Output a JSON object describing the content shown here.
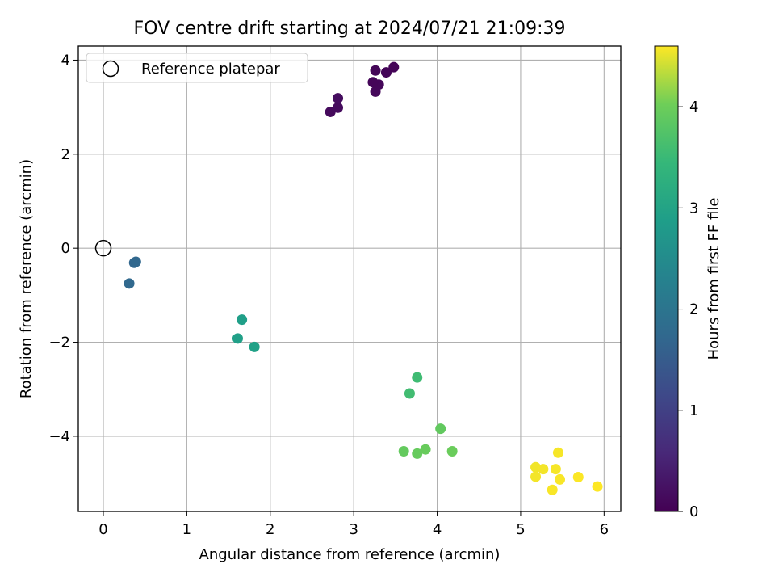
{
  "chart_data": {
    "type": "scatter",
    "title": "FOV centre drift starting at 2024/07/21 21:09:39",
    "xlabel": "Angular distance from reference (arcmin)",
    "ylabel": "Rotation from reference (arcmin)",
    "xlim": [
      -0.3,
      6.2
    ],
    "ylim": [
      -5.6,
      4.3
    ],
    "xticks": [
      "0",
      "1",
      "2",
      "3",
      "4",
      "5",
      "6"
    ],
    "yticks": [
      "−4",
      "−2",
      "0",
      "2",
      "4"
    ],
    "grid": true,
    "legend": {
      "placement": "top-left",
      "entries": [
        "Reference platepar"
      ]
    },
    "reference_point": {
      "x": 0,
      "y": 0
    },
    "colorbar": {
      "label": "Hours from first FF file",
      "range": [
        0,
        4.6
      ],
      "ticks": [
        "0",
        "1",
        "2",
        "3",
        "4"
      ],
      "colormap": "viridis"
    },
    "points": [
      {
        "x": 2.72,
        "y": 2.9,
        "t": 0.13
      },
      {
        "x": 2.81,
        "y": 2.99,
        "t": 0.15
      },
      {
        "x": 2.81,
        "y": 3.19,
        "t": 0.17
      },
      {
        "x": 3.26,
        "y": 3.33,
        "t": 0.1
      },
      {
        "x": 3.3,
        "y": 3.48,
        "t": 0.09
      },
      {
        "x": 3.23,
        "y": 3.53,
        "t": 0.08
      },
      {
        "x": 3.26,
        "y": 3.78,
        "t": 0.07
      },
      {
        "x": 3.39,
        "y": 3.74,
        "t": 0.06
      },
      {
        "x": 3.48,
        "y": 3.85,
        "t": 0.05
      },
      {
        "x": 0.37,
        "y": -0.31,
        "t": 1.7
      },
      {
        "x": 0.39,
        "y": -0.29,
        "t": 1.72
      },
      {
        "x": 0.31,
        "y": -0.75,
        "t": 1.75
      },
      {
        "x": 1.66,
        "y": -1.52,
        "t": 2.9
      },
      {
        "x": 1.61,
        "y": -1.92,
        "t": 2.92
      },
      {
        "x": 1.81,
        "y": -2.1,
        "t": 2.94
      },
      {
        "x": 3.76,
        "y": -2.75,
        "t": 3.55
      },
      {
        "x": 3.67,
        "y": -3.09,
        "t": 3.58
      },
      {
        "x": 4.04,
        "y": -3.84,
        "t": 3.9
      },
      {
        "x": 3.6,
        "y": -4.32,
        "t": 3.92
      },
      {
        "x": 3.76,
        "y": -4.37,
        "t": 3.94
      },
      {
        "x": 3.86,
        "y": -4.28,
        "t": 3.96
      },
      {
        "x": 4.18,
        "y": -4.32,
        "t": 3.98
      },
      {
        "x": 5.18,
        "y": -4.66,
        "t": 4.55
      },
      {
        "x": 5.27,
        "y": -4.7,
        "t": 4.56
      },
      {
        "x": 5.18,
        "y": -4.86,
        "t": 4.56
      },
      {
        "x": 5.42,
        "y": -4.7,
        "t": 4.57
      },
      {
        "x": 5.45,
        "y": -4.35,
        "t": 4.57
      },
      {
        "x": 5.47,
        "y": -4.92,
        "t": 4.58
      },
      {
        "x": 5.38,
        "y": -5.14,
        "t": 4.58
      },
      {
        "x": 5.69,
        "y": -4.87,
        "t": 4.59
      },
      {
        "x": 5.92,
        "y": -5.07,
        "t": 4.6
      }
    ]
  }
}
